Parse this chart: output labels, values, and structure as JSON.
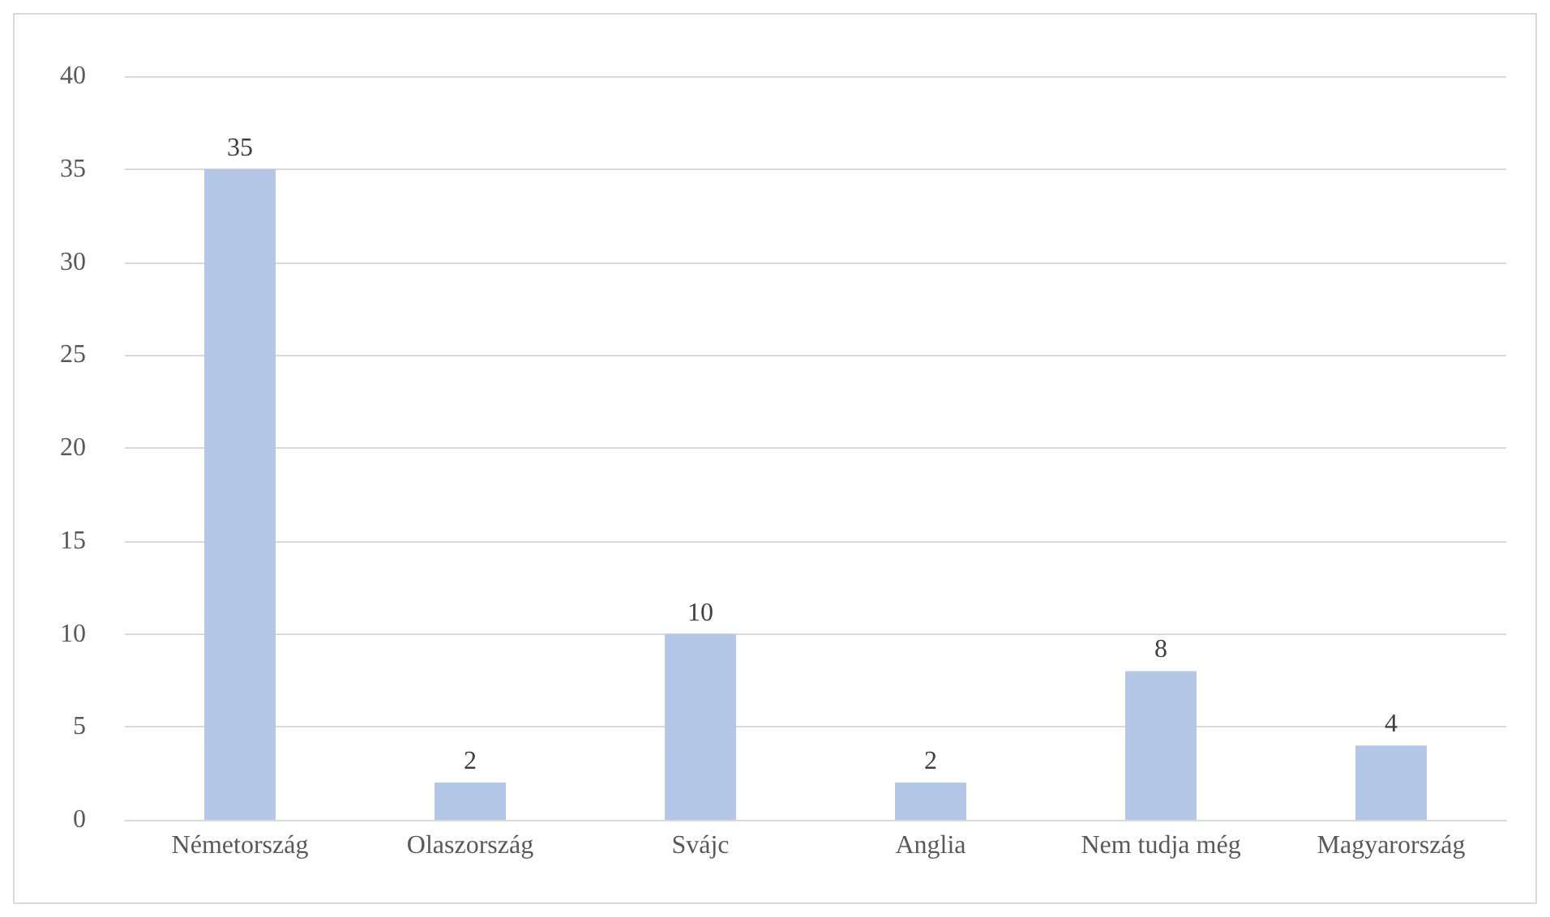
{
  "chart_data": {
    "type": "bar",
    "categories": [
      "Németország",
      "Olaszország",
      "Svájc",
      "Anglia",
      "Nem tudja még",
      "Magyarország"
    ],
    "values": [
      35,
      2,
      10,
      2,
      8,
      4
    ],
    "color": "#b4c7e7",
    "ylim": [
      0,
      40
    ],
    "yticks": [
      0,
      5,
      10,
      15,
      20,
      25,
      30,
      35,
      40
    ],
    "grid": "y",
    "data_labels": true
  }
}
